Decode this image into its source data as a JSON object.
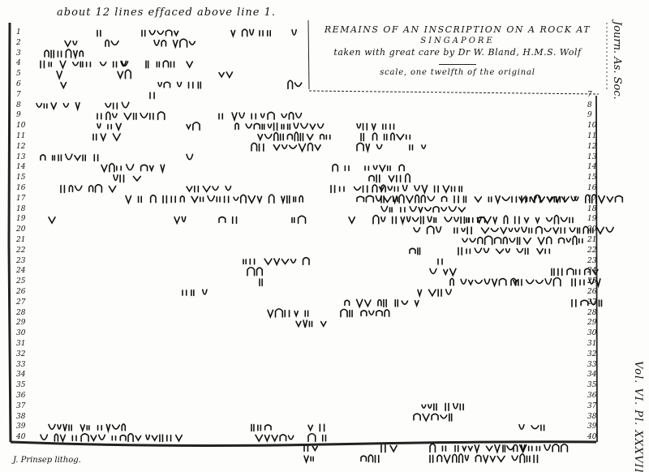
{
  "plate": {
    "note": "about 12 lines effaced above line 1.",
    "title_line1": "Remains of an Inscription on a Rock at",
    "title_line2": "Singapore",
    "title_line3": "taken with great care by Dr W. Bland, H.M.S. Wolf",
    "scale_note": "scale, one twelfth of the original",
    "journal": "Journ. As. Soc.",
    "volume": "Vol. VI. Pl. XXXVIII.",
    "credit": "J. Prinsep lithog."
  },
  "left_line_numbers": [
    "1",
    "2",
    "3",
    "4",
    "5",
    "6",
    "7",
    "8",
    "9",
    "10",
    "11",
    "12",
    "13",
    "14",
    "15",
    "16",
    "17",
    "18",
    "19",
    "20",
    "21",
    "22",
    "23",
    "24",
    "25",
    "26",
    "27",
    "28",
    "29",
    "30",
    "31",
    "32",
    "33",
    "34",
    "35",
    "36",
    "37",
    "38",
    "39",
    "40"
  ],
  "right_line_numbers": [
    "7",
    "8",
    "9",
    "10",
    "11",
    "12",
    "13",
    "14",
    "15",
    "16",
    "17",
    "18",
    "19",
    "20",
    "21",
    "22",
    "23",
    "24",
    "25",
    "26",
    "27",
    "28",
    "29",
    "30",
    "31",
    "32",
    "33",
    "34",
    "35",
    "36",
    "37",
    "38",
    "39",
    "40"
  ]
}
